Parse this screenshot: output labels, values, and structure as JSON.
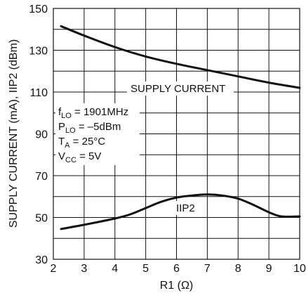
{
  "chart_data": {
    "type": "line",
    "xlabel": "R1 (Ω)",
    "ylabel": "SUPPLY CURRENT (mA), IIP2 (dBm)",
    "xlim": [
      2,
      10
    ],
    "ylim": [
      30,
      150
    ],
    "x_ticks": [
      "2",
      "3",
      "4",
      "5",
      "6",
      "7",
      "8",
      "9",
      "10"
    ],
    "y_ticks": [
      "30",
      "50",
      "70",
      "90",
      "110",
      "130",
      "150"
    ],
    "grid": true,
    "series": [
      {
        "name": "SUPPLY CURRENT",
        "x": [
          2.25,
          3,
          4,
          5,
          6,
          7,
          8,
          9,
          10
        ],
        "y": [
          141.5,
          137,
          131.5,
          127,
          123.5,
          120.5,
          117.5,
          114.5,
          112
        ]
      },
      {
        "name": "IIP2",
        "x": [
          2.25,
          3,
          4,
          4.5,
          5,
          5.5,
          6,
          6.5,
          7,
          7.5,
          8,
          8.5,
          9,
          9.4,
          10
        ],
        "y": [
          44.5,
          46.5,
          49.5,
          51.5,
          54.5,
          57.5,
          59.5,
          60.5,
          61,
          60.5,
          59,
          56,
          52.5,
          50.5,
          50.5
        ]
      }
    ],
    "conditions": {
      "f_lo": {
        "main": "f",
        "sub": "LO",
        "rest": " = 1901MHz"
      },
      "p_lo": {
        "main": "P",
        "sub": "LO",
        "rest": " = –5dBm"
      },
      "t_a": {
        "main": "T",
        "sub": "A",
        "rest": " = 25°C"
      },
      "v_cc": {
        "main": "V",
        "sub": "CC",
        "rest": " = 5V"
      }
    }
  }
}
